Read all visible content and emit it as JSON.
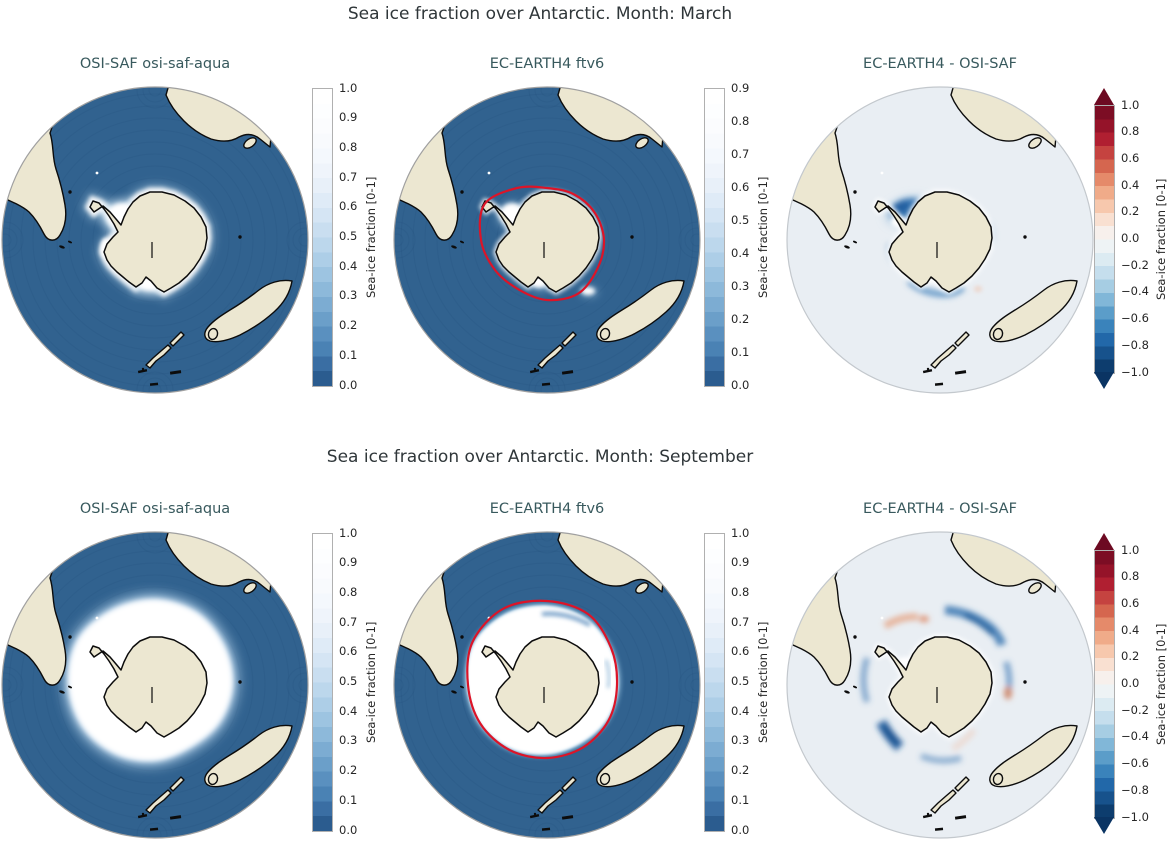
{
  "figure": {
    "rows": [
      {
        "suptitle": "Sea ice fraction over Antarctic. Month: March",
        "panels": [
          {
            "title": "OSI-SAF osi-saf-aqua",
            "colorbar": "blues_0_1"
          },
          {
            "title": "EC-EARTH4 ftv6",
            "colorbar": "blues_0_09"
          },
          {
            "title": "EC-EARTH4 -  OSI-SAF",
            "colorbar": "diverging"
          }
        ]
      },
      {
        "suptitle": "Sea ice fraction over Antarctic. Month: September",
        "panels": [
          {
            "title": "OSI-SAF osi-saf-aqua",
            "colorbar": "blues_0_1"
          },
          {
            "title": "EC-EARTH4 ftv6",
            "colorbar": "blues_0_1"
          },
          {
            "title": "EC-EARTH4 -  OSI-SAF",
            "colorbar": "diverging"
          }
        ]
      }
    ]
  },
  "colorbars": {
    "label": "Sea-ice fraction [0-1]",
    "blues_0_1": {
      "ticks": [
        "1.0",
        "0.9",
        "0.8",
        "0.7",
        "0.6",
        "0.5",
        "0.4",
        "0.3",
        "0.2",
        "0.1",
        "0.0"
      ]
    },
    "blues_0_09": {
      "ticks": [
        "0.9",
        "0.8",
        "0.7",
        "0.6",
        "0.5",
        "0.4",
        "0.3",
        "0.2",
        "0.1",
        "0.0"
      ]
    },
    "diverging": {
      "ticks": [
        "1.0",
        "0.8",
        "0.6",
        "0.4",
        "0.2",
        "0.0",
        "−0.2",
        "−0.4",
        "−0.6",
        "−0.8",
        "−1.0"
      ]
    }
  },
  "colors": {
    "suptitle_text": "#2f3639",
    "panel_title_text": "#38595d",
    "tick_text": "#262626",
    "ocean": "#31628f",
    "ocean_texture": "#1c4a77",
    "land": "#ece7d1",
    "coast": "#0c0c0c",
    "ice": "#ffffff",
    "diff_ocean": "#e9eef3",
    "contour": "#dc1428",
    "rim": "#a0a0a0",
    "diff_rim": "#c3c8cd",
    "arrow_top": "#6d0a22",
    "arrow_bottom": "#0a3463",
    "blues_segments": [
      "#2b5c8f",
      "#3a6ea3",
      "#4a82b4",
      "#5a90bf",
      "#6b9fc9",
      "#7cacd2",
      "#8db9da",
      "#9dc4e1",
      "#adcee7",
      "#bcd7ec",
      "#c9def0",
      "#d5e5f4",
      "#dfebf7",
      "#e8f0f9",
      "#eff4fb",
      "#f4f8fd",
      "#f8fafd",
      "#fbfcfe",
      "#fdfeff",
      "#ffffff"
    ],
    "rdbu_segments": [
      "#0d3d6e",
      "#17528c",
      "#2268a9",
      "#3a83bb",
      "#5b9dc9",
      "#81b7d8",
      "#a6cde3",
      "#c5deed",
      "#dcebf2",
      "#eef3f5",
      "#f7f0ec",
      "#f9e0d1",
      "#f7c8ad",
      "#f0ab89",
      "#e58a6a",
      "#d5664f",
      "#c54340",
      "#b01f31",
      "#951329",
      "#7c0d24"
    ]
  },
  "chart_data": [
    {
      "type": "heatmap",
      "subtype": "south-polar-map-trio",
      "projection": "South polar orthographic view centered on Antarctica",
      "suptitle": "Sea ice fraction over Antarctic. Month: March",
      "panels": [
        {
          "title": "OSI-SAF osi-saf-aqua",
          "role": "observations",
          "variable": "Sea-ice fraction [0-1]",
          "colormap": "Blues (0.0 = dark blue ocean, 1.0 = white ice)",
          "range": [
            0.0,
            1.0
          ],
          "ticks": [
            0.0,
            0.1,
            0.2,
            0.3,
            0.4,
            0.5,
            0.6,
            0.7,
            0.8,
            0.9,
            1.0
          ],
          "features": "Southern Ocean mostly ice-free (~0.0); sea ice near 1.0 concentrated in the Weddell Sea embayment, along the Bellingshausen coast and in the Ross Sea notch."
        },
        {
          "title": "EC-EARTH4 ftv6",
          "role": "model",
          "variable": "Sea-ice fraction [0-1]",
          "colormap": "Blues (0.0 = dark blue ocean, 0.9 = white ice)",
          "range": [
            0.0,
            0.9
          ],
          "ticks": [
            0.0,
            0.1,
            0.2,
            0.3,
            0.4,
            0.5,
            0.6,
            0.7,
            0.8,
            0.9
          ],
          "overlay": "Red contour line marking the observed sea-ice edge close offshore around the coast",
          "features": "Slightly smaller ice patches than observed in Weddell and Ross Seas; small patches on the east coast."
        },
        {
          "title": "EC-EARTH4 -  OSI-SAF",
          "role": "difference (model minus observations)",
          "variable": "Sea-ice fraction [0-1]",
          "colormap": "RdBu_r diverging (blue = negative, white = 0, red = positive)",
          "range": [
            -1.0,
            1.0
          ],
          "ticks": [
            -1.0,
            -0.8,
            -0.6,
            -0.4,
            -0.2,
            0.0,
            0.2,
            0.4,
            0.6,
            0.8,
            1.0
          ],
          "colorbar_extend": "both",
          "features": "Strong negative (blue, to about -0.8) difference in the Weddell Sea, negative band along the Ross Sea / bottom coast, faint negative streaks on east and west coasts; elsewhere near zero."
        }
      ]
    },
    {
      "type": "heatmap",
      "subtype": "south-polar-map-trio",
      "projection": "South polar orthographic view centered on Antarctica",
      "suptitle": "Sea ice fraction over Antarctic. Month: September",
      "panels": [
        {
          "title": "OSI-SAF osi-saf-aqua",
          "role": "observations",
          "variable": "Sea-ice fraction [0-1]",
          "colormap": "Blues (0.0 = dark blue ocean, 1.0 = white ice)",
          "range": [
            0.0,
            1.0
          ],
          "ticks": [
            0.0,
            0.1,
            0.2,
            0.3,
            0.4,
            0.5,
            0.6,
            0.7,
            0.8,
            0.9,
            1.0
          ],
          "features": "Extensive winter ice ring (fraction ~1.0) fully surrounding Antarctica with a soft, diffuse outer edge."
        },
        {
          "title": "EC-EARTH4 ftv6",
          "role": "model",
          "variable": "Sea-ice fraction [0-1]",
          "colormap": "Blues (0.0 = dark blue ocean, 1.0 = white ice)",
          "range": [
            0.0,
            1.0
          ],
          "ticks": [
            0.0,
            0.1,
            0.2,
            0.3,
            0.4,
            0.5,
            0.6,
            0.7,
            0.8,
            0.9,
            1.0
          ],
          "overlay": "Red contour line marking the observed sea-ice edge around the ice ring",
          "features": "Similar winter ice ring with a sharper edge; darker blue gradient streaks at the northern ice margin."
        },
        {
          "title": "EC-EARTH4 -  OSI-SAF",
          "role": "difference (model minus observations)",
          "variable": "Sea-ice fraction [0-1]",
          "colormap": "RdBu_r diverging (blue = negative, white = 0, red = positive)",
          "range": [
            -1.0,
            1.0
          ],
          "ticks": [
            -1.0,
            -0.8,
            -0.6,
            -0.4,
            -0.2,
            0.0,
            0.2,
            0.4,
            0.6,
            0.8,
            1.0
          ],
          "colorbar_extend": "both",
          "features": "Alternating arcs along the ice edge: negative (blue, to about -0.6) arcs north-east, west and south of the continent, strongest south-west; scattered weak positive (salmon/red, ~+0.3) patches north-west of the Weddell Sea and east of the continent."
        }
      ]
    }
  ]
}
